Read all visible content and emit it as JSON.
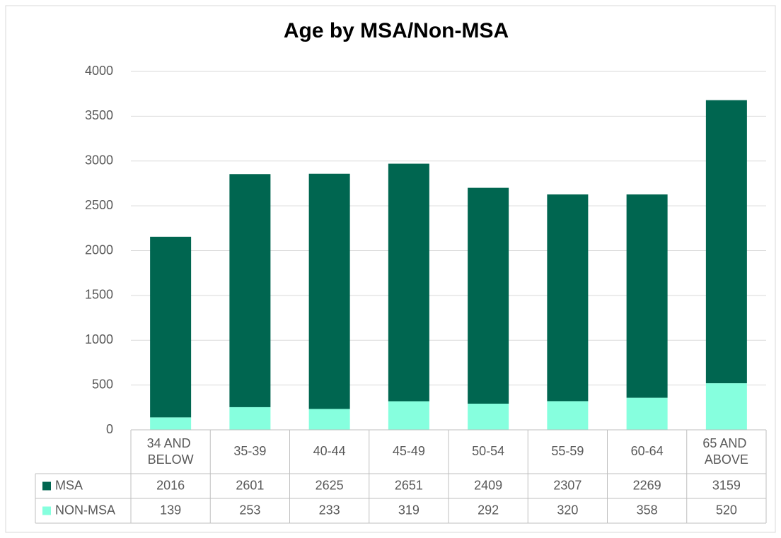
{
  "chart_data": {
    "type": "bar",
    "stacked": true,
    "title": "Age by MSA/Non-MSA",
    "categories": [
      "34 AND BELOW",
      "35-39",
      "40-44",
      "45-49",
      "50-54",
      "55-59",
      "60-64",
      "65 AND ABOVE"
    ],
    "series": [
      {
        "name": "MSA",
        "color": "#006650",
        "values": [
          2016,
          2601,
          2625,
          2651,
          2409,
          2307,
          2269,
          3159
        ]
      },
      {
        "name": "NON-MSA",
        "color": "#86FFDE",
        "values": [
          139,
          253,
          233,
          319,
          292,
          320,
          358,
          520
        ]
      }
    ],
    "ylim": [
      0,
      4000
    ],
    "yticks": [
      0,
      500,
      1000,
      1500,
      2000,
      2500,
      3000,
      3500,
      4000
    ],
    "grid": true,
    "data_table": true
  }
}
